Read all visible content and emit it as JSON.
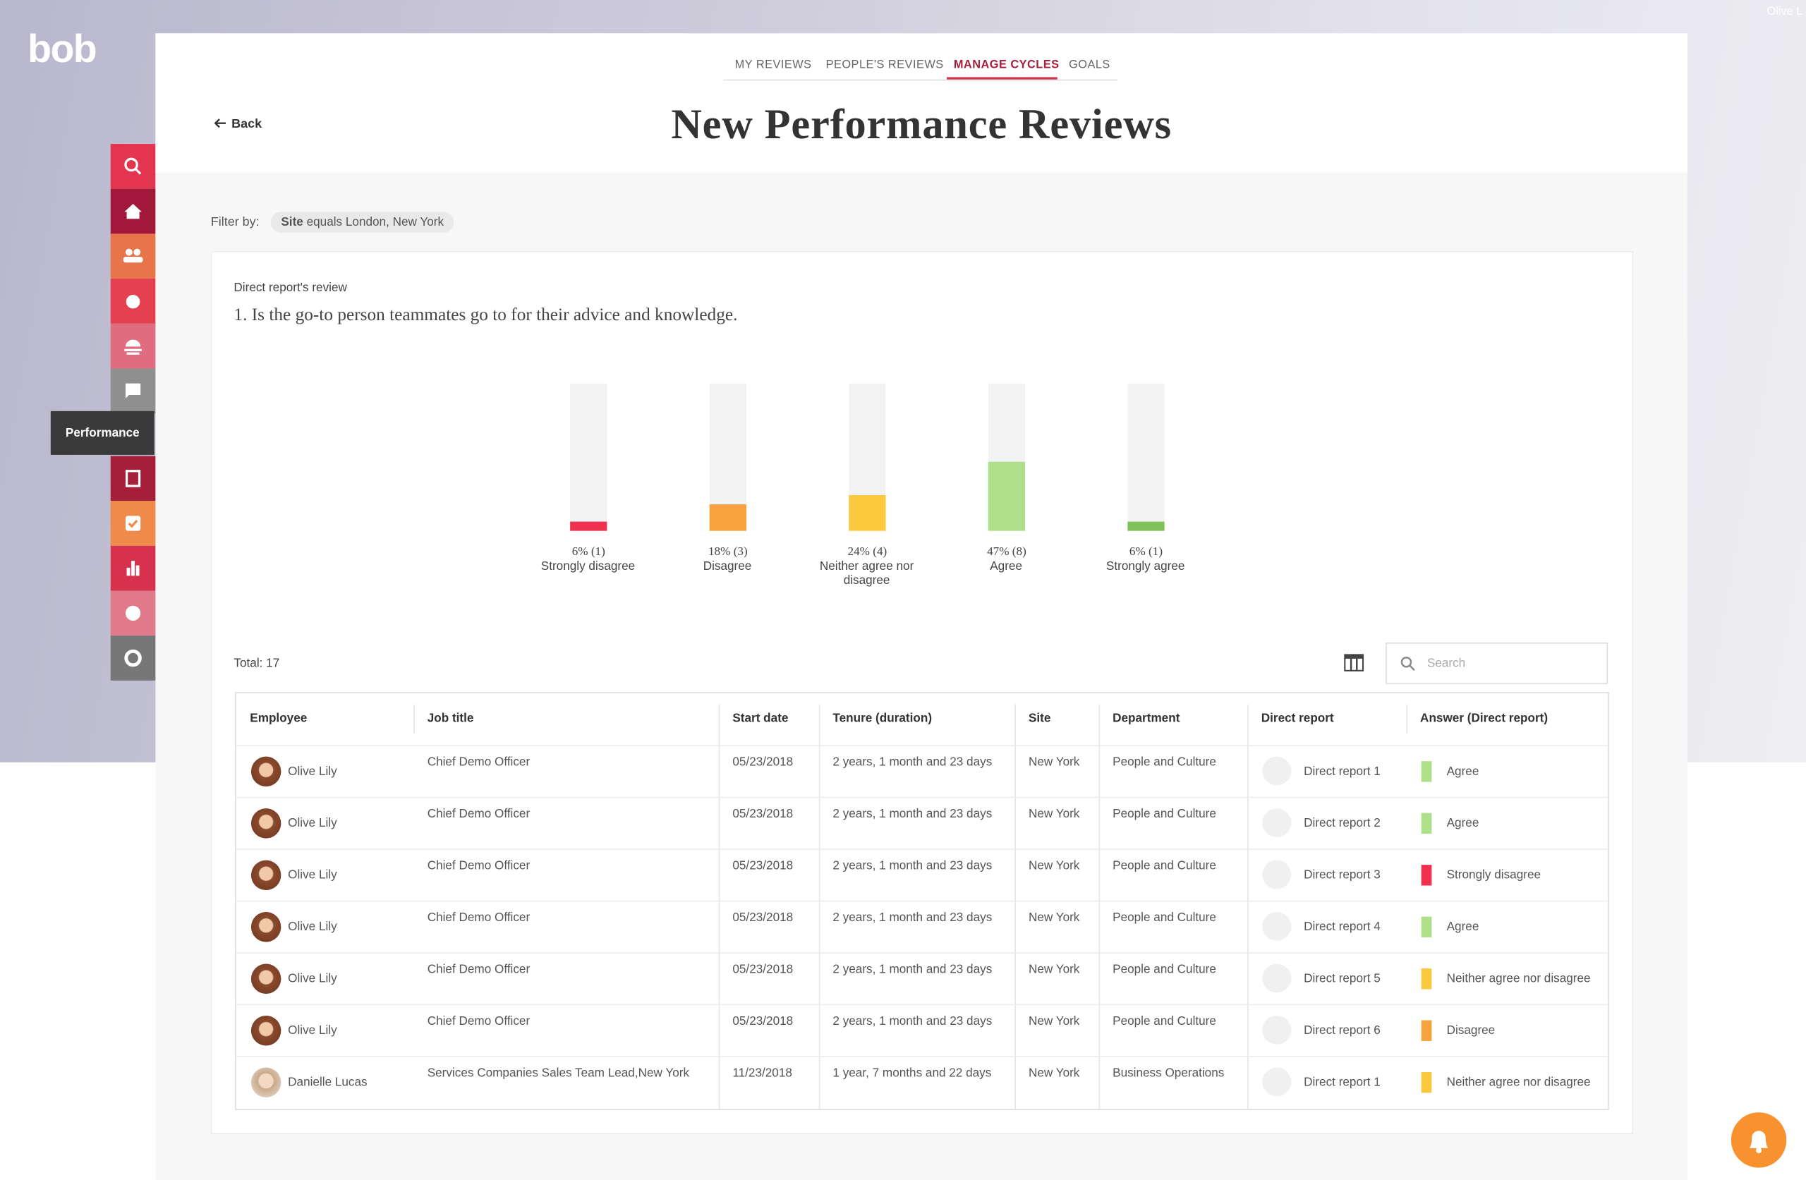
{
  "brand": "bob",
  "user": "Olive L",
  "tabs": [
    "MY REVIEWS",
    "PEOPLE'S REVIEWS",
    "MANAGE CYCLES",
    "GOALS"
  ],
  "active_tab": 2,
  "back": "Back",
  "title": "New Performance Reviews",
  "sidebar_tooltip": "Performance",
  "filter": {
    "label": "Filter by:",
    "field": "Site",
    "text": "equals London, New York"
  },
  "question": {
    "section": "Direct report's review",
    "text": "1. Is the go-to person teammates go to for their advice and knowledge."
  },
  "chart_data": {
    "type": "bar",
    "categories": [
      "Strongly disagree",
      "Disagree",
      "Neither agree nor disagree",
      "Agree",
      "Strongly agree"
    ],
    "values": [
      6,
      18,
      24,
      47,
      6
    ],
    "value_labels": [
      "6% (1)",
      "18% (3)",
      "24% (4)",
      "47% (8)",
      "6% (1)"
    ],
    "colors": [
      "#f0304f",
      "#f7a23e",
      "#fbc93e",
      "#aee08a",
      "#7fc25a"
    ],
    "ylim": [
      0,
      100
    ]
  },
  "total": "Total: 17",
  "search_placeholder": "Search",
  "table": {
    "columns": [
      "Employee",
      "Job title",
      "Start date",
      "Tenure (duration)",
      "Site",
      "Department",
      "Direct report",
      "Answer (Direct report)"
    ],
    "rows": [
      [
        "Olive Lily",
        "Chief Demo Officer",
        "05/23/2018",
        "2 years, 1 month and 23 days",
        "New York",
        "People and Culture",
        "Direct report 1",
        "Agree"
      ],
      [
        "Olive Lily",
        "Chief Demo Officer",
        "05/23/2018",
        "2 years, 1 month and 23 days",
        "New York",
        "People and Culture",
        "Direct report 2",
        "Agree"
      ],
      [
        "Olive Lily",
        "Chief Demo Officer",
        "05/23/2018",
        "2 years, 1 month and 23 days",
        "New York",
        "People and Culture",
        "Direct report 3",
        "Strongly disagree"
      ],
      [
        "Olive Lily",
        "Chief Demo Officer",
        "05/23/2018",
        "2 years, 1 month and 23 days",
        "New York",
        "People and Culture",
        "Direct report 4",
        "Agree"
      ],
      [
        "Olive Lily",
        "Chief Demo Officer",
        "05/23/2018",
        "2 years, 1 month and 23 days",
        "New York",
        "People and Culture",
        "Direct report 5",
        "Neither agree nor disagree"
      ],
      [
        "Olive Lily",
        "Chief Demo Officer",
        "05/23/2018",
        "2 years, 1 month and 23 days",
        "New York",
        "People and Culture",
        "Direct report 6",
        "Disagree"
      ],
      [
        "Danielle Lucas",
        "Services Companies Sales Team Lead,New York",
        "11/23/2018",
        "1 year, 7 months and 22 days",
        "New York",
        "Business Operations",
        "Direct report 1",
        "Neither agree nor disagree"
      ]
    ]
  }
}
